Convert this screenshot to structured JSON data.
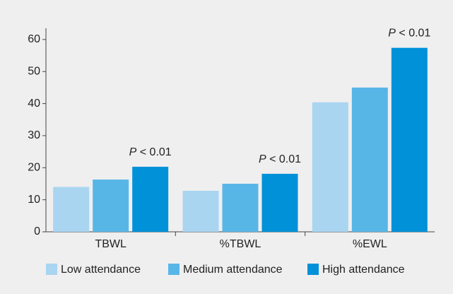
{
  "chart_data": {
    "type": "bar",
    "categories": [
      "TBWL",
      "%TBWL",
      "%EWL"
    ],
    "series": [
      {
        "name": "Low attendance",
        "color": "#a9d5f1",
        "values": [
          14,
          12.8,
          40.4
        ]
      },
      {
        "name": "Medium attendance",
        "color": "#58b6e7",
        "values": [
          16.3,
          15,
          45
        ]
      },
      {
        "name": "High attendance",
        "color": "#0091d9",
        "values": [
          20.3,
          18.1,
          57.4
        ]
      }
    ],
    "annotations": [
      {
        "text": "P < 0.01",
        "category": "TBWL"
      },
      {
        "text": "P < 0.01",
        "category": "%TBWL"
      },
      {
        "text": "P < 0.01",
        "category": "%EWL"
      }
    ],
    "ylim": [
      0,
      63.5
    ],
    "yticks": [
      0,
      10,
      20,
      30,
      40,
      50,
      60
    ],
    "grid": false,
    "legend": "bottom"
  }
}
